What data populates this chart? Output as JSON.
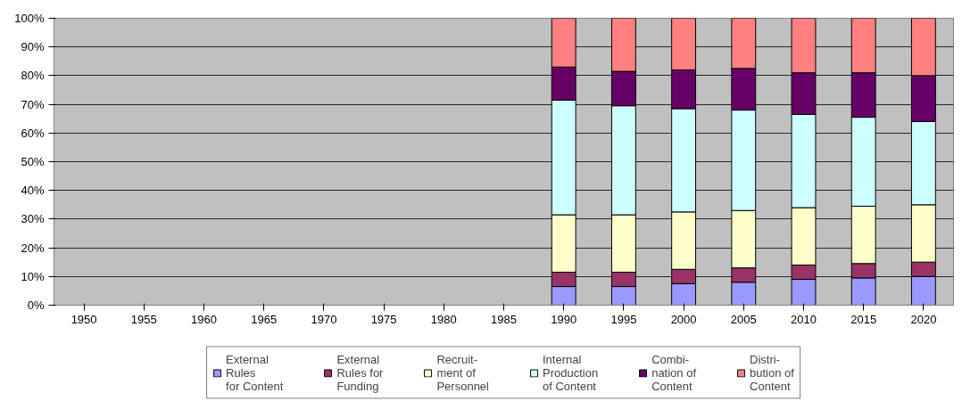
{
  "chart_data": {
    "type": "bar",
    "stacked": true,
    "categories": [
      "1950",
      "1955",
      "1960",
      "1965",
      "1970",
      "1975",
      "1980",
      "1985",
      "1990",
      "1995",
      "2000",
      "2005",
      "2010",
      "2015",
      "2020"
    ],
    "series": [
      {
        "name": "External\nRules\nfor Content",
        "color": "#9999ff",
        "values": [
          null,
          null,
          null,
          null,
          null,
          null,
          null,
          null,
          6.5,
          6.5,
          7.5,
          8,
          9,
          9.5,
          10
        ]
      },
      {
        "name": "External\nRules for\nFunding",
        "color": "#993366",
        "values": [
          null,
          null,
          null,
          null,
          null,
          null,
          null,
          null,
          5,
          5,
          5,
          5,
          5,
          5,
          5
        ]
      },
      {
        "name": "Recruit-\nment of\nPersonnel",
        "color": "#ffffcc",
        "values": [
          null,
          null,
          null,
          null,
          null,
          null,
          null,
          null,
          20,
          20,
          20,
          20,
          20,
          20,
          20
        ]
      },
      {
        "name": "Internal\nProduction\nof Content",
        "color": "#ccffff",
        "values": [
          null,
          null,
          null,
          null,
          null,
          null,
          null,
          null,
          40,
          38,
          36,
          35,
          32.5,
          31,
          29
        ]
      },
      {
        "name": "Combi-\nnation of\nContent",
        "color": "#660066",
        "values": [
          null,
          null,
          null,
          null,
          null,
          null,
          null,
          null,
          11.5,
          12,
          13.5,
          14.5,
          14.5,
          15.5,
          16
        ]
      },
      {
        "name": "Distri-\nbution of\nContent",
        "color": "#ff8080",
        "values": [
          null,
          null,
          null,
          null,
          null,
          null,
          null,
          null,
          17,
          18.5,
          18,
          17.5,
          19,
          19,
          20
        ]
      }
    ],
    "ylim": [
      0,
      100
    ],
    "yticks": [
      {
        "value": 0,
        "label": "0%"
      },
      {
        "value": 10,
        "label": "10%"
      },
      {
        "value": 20,
        "label": "20%"
      },
      {
        "value": 30,
        "label": "30%"
      },
      {
        "value": 40,
        "label": "40%"
      },
      {
        "value": 50,
        "label": "50%"
      },
      {
        "value": 60,
        "label": "60%"
      },
      {
        "value": 70,
        "label": "70%"
      },
      {
        "value": 80,
        "label": "80%"
      },
      {
        "value": 90,
        "label": "90%"
      },
      {
        "value": 100,
        "label": "100%"
      }
    ],
    "grid": "y",
    "legend": "bottom"
  }
}
